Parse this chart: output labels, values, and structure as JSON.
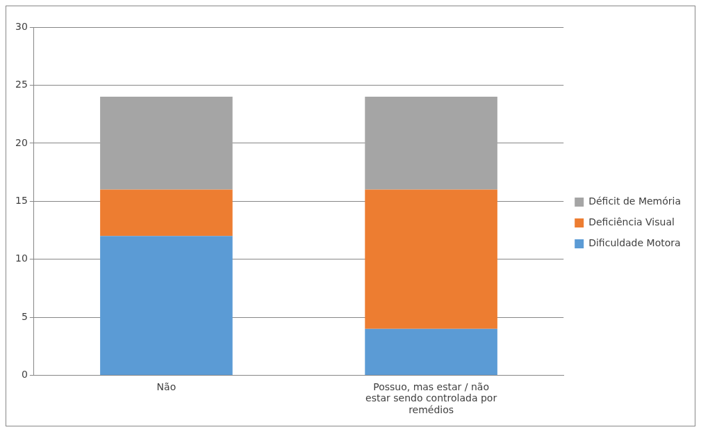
{
  "chart_data": {
    "type": "bar",
    "stacked": true,
    "categories": [
      "Não",
      "Possuo, mas estar / não estar sendo controlada por remédios"
    ],
    "series": [
      {
        "name": "Dificuldade Motora",
        "color": "#5b9bd5",
        "values": [
          12,
          4
        ]
      },
      {
        "name": "Deficiência Visual",
        "color": "#ed7d31",
        "values": [
          4,
          12
        ]
      },
      {
        "name": "Déficit de Memória",
        "color": "#a5a5a5",
        "values": [
          8,
          8
        ]
      }
    ],
    "ylim": [
      0,
      30
    ],
    "yticks": [
      0,
      5,
      10,
      15,
      20,
      25,
      30
    ],
    "grid": "y",
    "legend": "right"
  }
}
